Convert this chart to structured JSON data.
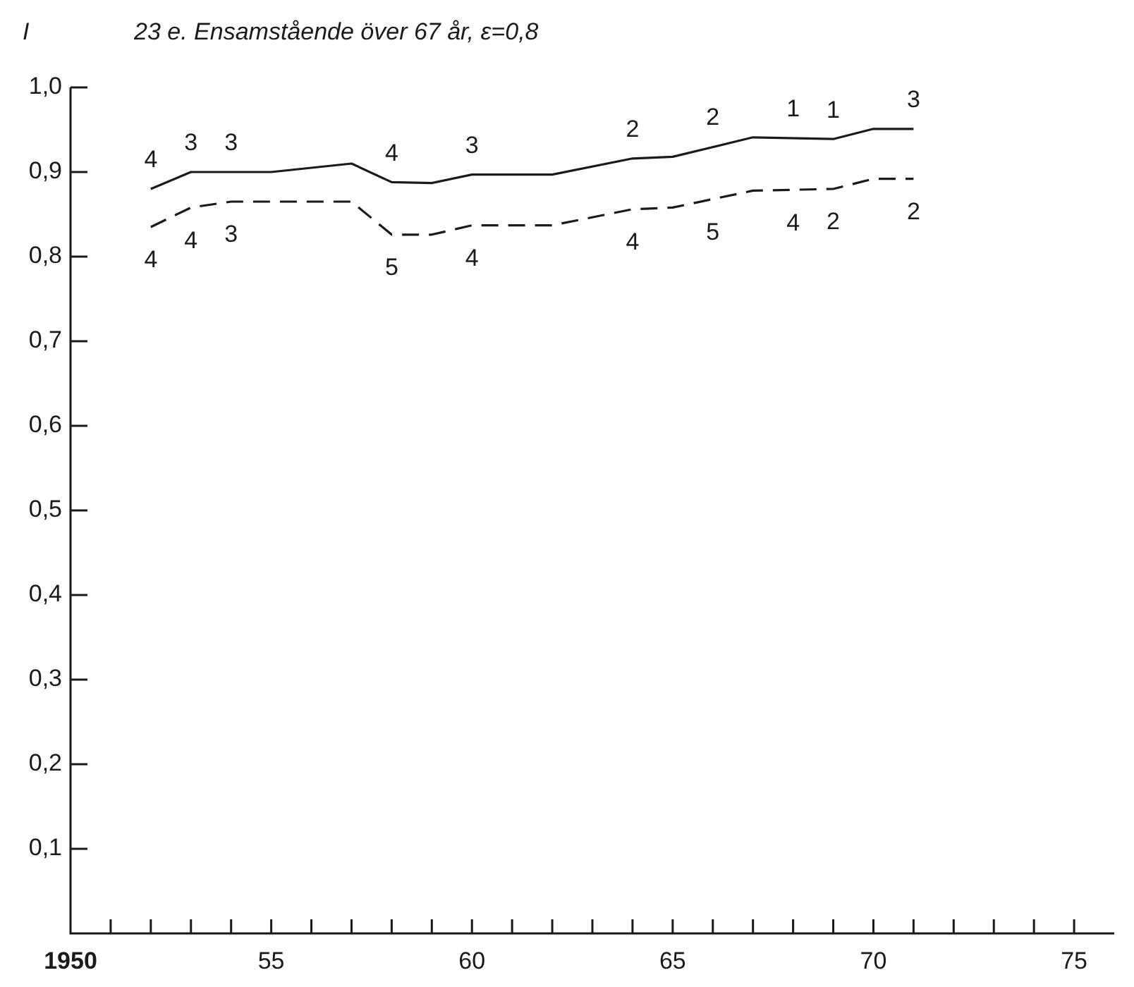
{
  "chart_data": {
    "type": "line",
    "title": "23 e. Ensamstående över 67 år, ε=0,8",
    "ylabel": "I",
    "xlim": [
      1950,
      1976
    ],
    "xticks": [
      {
        "value": 1950,
        "label": "1950"
      },
      {
        "value": 1951,
        "label": null
      },
      {
        "value": 1952,
        "label": null
      },
      {
        "value": 1953,
        "label": null
      },
      {
        "value": 1954,
        "label": null
      },
      {
        "value": 1955,
        "label": "55"
      },
      {
        "value": 1956,
        "label": null
      },
      {
        "value": 1957,
        "label": null
      },
      {
        "value": 1958,
        "label": null
      },
      {
        "value": 1959,
        "label": null
      },
      {
        "value": 1960,
        "label": "60"
      },
      {
        "value": 1961,
        "label": null
      },
      {
        "value": 1962,
        "label": null
      },
      {
        "value": 1963,
        "label": null
      },
      {
        "value": 1964,
        "label": null
      },
      {
        "value": 1965,
        "label": "65"
      },
      {
        "value": 1966,
        "label": null
      },
      {
        "value": 1967,
        "label": null
      },
      {
        "value": 1968,
        "label": null
      },
      {
        "value": 1969,
        "label": null
      },
      {
        "value": 1970,
        "label": "70"
      },
      {
        "value": 1971,
        "label": null
      },
      {
        "value": 1972,
        "label": null
      },
      {
        "value": 1973,
        "label": null
      },
      {
        "value": 1974,
        "label": null
      },
      {
        "value": 1975,
        "label": "75"
      }
    ],
    "ylim": [
      0,
      1.0
    ],
    "yticks": [
      {
        "value": 0.1,
        "label": "0,1"
      },
      {
        "value": 0.2,
        "label": "0,2"
      },
      {
        "value": 0.3,
        "label": "0,3"
      },
      {
        "value": 0.4,
        "label": "0,4"
      },
      {
        "value": 0.5,
        "label": "0,5"
      },
      {
        "value": 0.6,
        "label": "0,6"
      },
      {
        "value": 0.7,
        "label": "0,7"
      },
      {
        "value": 0.8,
        "label": "0,8"
      },
      {
        "value": 0.9,
        "label": "0,9"
      },
      {
        "value": 1.0,
        "label": "1,0"
      }
    ],
    "grid": false,
    "legend": false,
    "marker": "none",
    "series": [
      {
        "color": "#1a1a1a",
        "line_style": "solid",
        "x": [
          1952,
          1953,
          1955,
          1956,
          1957,
          1958,
          1959,
          1960,
          1962,
          1964,
          1965,
          1967,
          1969,
          1970,
          1971
        ],
        "values": [
          0.88,
          0.9,
          0.9,
          0.905,
          0.91,
          0.888,
          0.887,
          0.897,
          0.897,
          0.916,
          0.918,
          0.941,
          0.939,
          0.951,
          0.951
        ]
      },
      {
        "color": "#1a1a1a",
        "line_style": "dashed",
        "x": [
          1952,
          1953,
          1954,
          1957,
          1958,
          1959,
          1960,
          1962,
          1964,
          1965,
          1967,
          1969,
          1970,
          1971
        ],
        "values": [
          0.835,
          0.858,
          0.865,
          0.865,
          0.826,
          0.826,
          0.837,
          0.837,
          0.856,
          0.858,
          0.878,
          0.88,
          0.892,
          0.892
        ]
      }
    ],
    "annotations": [
      {
        "text": "4",
        "x": 1952,
        "y": 0.88
      },
      {
        "text": "3",
        "x": 1953,
        "y": 0.9
      },
      {
        "text": "3",
        "x": 1954,
        "y": 0.9
      },
      {
        "text": "4",
        "x": 1958,
        "y": 0.888
      },
      {
        "text": "3",
        "x": 1960,
        "y": 0.897
      },
      {
        "text": "2",
        "x": 1964,
        "y": 0.916
      },
      {
        "text": "2",
        "x": 1966,
        "y": 0.93
      },
      {
        "text": "1",
        "x": 1968,
        "y": 0.94
      },
      {
        "text": "1",
        "x": 1969,
        "y": 0.939
      },
      {
        "text": "3",
        "x": 1971,
        "y": 0.951
      },
      {
        "text": "4",
        "x": 1952,
        "y": 0.835
      },
      {
        "text": "4",
        "x": 1953,
        "y": 0.858
      },
      {
        "text": "3",
        "x": 1954,
        "y": 0.865
      },
      {
        "text": "5",
        "x": 1958,
        "y": 0.826
      },
      {
        "text": "4",
        "x": 1960,
        "y": 0.837
      },
      {
        "text": "4",
        "x": 1964,
        "y": 0.856
      },
      {
        "text": "5",
        "x": 1966,
        "y": 0.868
      },
      {
        "text": "4",
        "x": 1968,
        "y": 0.879
      },
      {
        "text": "2",
        "x": 1969,
        "y": 0.88
      },
      {
        "text": "2",
        "x": 1971,
        "y": 0.892
      }
    ]
  }
}
